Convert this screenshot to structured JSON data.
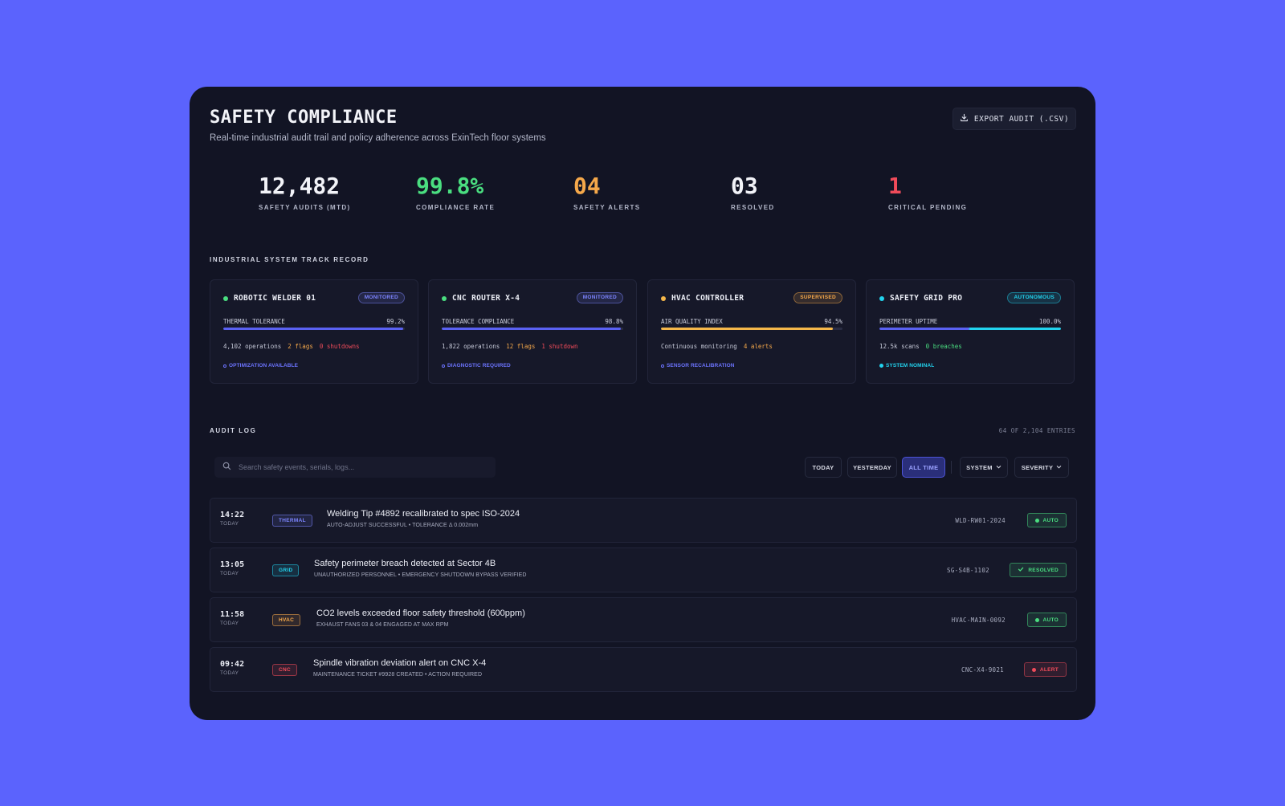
{
  "header": {
    "title": "SAFETY COMPLIANCE",
    "subtitle": "Real-time industrial audit trail and policy adherence across ExinTech floor systems",
    "export_label": "EXPORT AUDIT (.CSV)",
    "export_icon": "download-icon"
  },
  "stats": [
    {
      "value": "12,482",
      "label": "SAFETY AUDITS (MTD)",
      "color": "#f2f3f8"
    },
    {
      "value": "99.8%",
      "label": "COMPLIANCE RATE",
      "color": "#4ade80"
    },
    {
      "value": "04",
      "label": "SAFETY ALERTS",
      "color": "#f5a84a"
    },
    {
      "value": "03",
      "label": "RESOLVED",
      "color": "#f2f3f8"
    },
    {
      "value": "1",
      "label": "CRITICAL PENDING",
      "color": "#f04b5a"
    }
  ],
  "track_record": {
    "heading": "INDUSTRIAL SYSTEM TRACK RECORD",
    "systems": [
      {
        "name": "ROBOTIC WELDER 01",
        "dot_color": "#4ade80",
        "badge": "MONITORED",
        "badge_color": "#7c84ff",
        "metric_label": "THERMAL TOLERANCE",
        "metric_value": "99.2%",
        "level": 0.992,
        "bar_color": "#5a61f2",
        "ops": "4,102 operations",
        "flags": "2 flags",
        "flags_color": "#f5a84a",
        "extra": "0 shutdowns",
        "extra_color": "#f04b5a",
        "action": "OPTIMIZATION AVAILABLE",
        "action_color": "#6c74ff"
      },
      {
        "name": "CNC ROUTER X-4",
        "dot_color": "#4ade80",
        "badge": "MONITORED",
        "badge_color": "#7c84ff",
        "metric_label": "TOLERANCE COMPLIANCE",
        "metric_value": "98.8%",
        "level": 0.988,
        "bar_color": "#5a61f2",
        "ops": "1,822 operations",
        "flags": "12 flags",
        "flags_color": "#f5a84a",
        "extra": "1 shutdown",
        "extra_color": "#f04b5a",
        "action": "DIAGNOSTIC REQUIRED",
        "action_color": "#6c74ff"
      },
      {
        "name": "HVAC CONTROLLER",
        "dot_color": "#f5b74a",
        "badge": "SUPERVISED",
        "badge_color": "#f5a84a",
        "metric_label": "AIR QUALITY INDEX",
        "metric_value": "94.5%",
        "level": 0.945,
        "bar_color": "#f5b74a",
        "ops": "Continuous monitoring",
        "flags": "4 alerts",
        "flags_color": "#f5a84a",
        "extra": "",
        "extra_color": "#f04b5a",
        "action": "SENSOR RECALIBRATION",
        "action_color": "#6c74ff"
      },
      {
        "name": "SAFETY GRID PRO",
        "dot_color": "#22d3ee",
        "badge": "AUTONOMOUS",
        "badge_color": "#22d3ee",
        "metric_label": "PERIMETER UPTIME",
        "metric_value": "100.0%",
        "level": 1.0,
        "bar_color": "#22d3ee",
        "ops": "12.5k scans",
        "flags": "0 breaches",
        "flags_color": "#4ade80",
        "extra": "",
        "extra_color": "#f04b5a",
        "action": "SYSTEM NOMINAL",
        "action_color": "#22d3ee"
      }
    ]
  },
  "audit_log": {
    "heading": "AUDIT LOG",
    "entries_count": "64 OF 2,104 ENTRIES",
    "search_placeholder": "Search safety events, serials, logs...",
    "search_icon": "search-icon",
    "filters": {
      "today": "TODAY",
      "yesterday": "YESTERDAY",
      "all_time": "ALL TIME",
      "active": "ALL TIME"
    },
    "dropdowns": {
      "system": "SYSTEM",
      "severity": "SEVERITY"
    },
    "rows": [
      {
        "time": "14:22",
        "day": "TODAY",
        "tag": "THERMAL",
        "tag_color": "#7c84ff",
        "title": "Welding Tip #4892 recalibrated to spec ISO-2024",
        "detail": "AUTO-ADJUST SUCCESSFUL • TOLERANCE Δ 0.002mm",
        "serial": "WLD-RW01-2024",
        "status": "AUTO",
        "status_color": "#4ade80",
        "status_icon": "dot-icon"
      },
      {
        "time": "13:05",
        "day": "TODAY",
        "tag": "GRID",
        "tag_color": "#22d3ee",
        "title": "Safety perimeter breach detected at Sector 4B",
        "detail": "UNAUTHORIZED PERSONNEL • EMERGENCY SHUTDOWN BYPASS VERIFIED",
        "serial": "SG-S4B-1102",
        "status": "RESOLVED",
        "status_color": "#4ade80",
        "status_icon": "check-icon"
      },
      {
        "time": "11:58",
        "day": "TODAY",
        "tag": "HVAC",
        "tag_color": "#f5a84a",
        "title": "CO2 levels exceeded floor safety threshold (600ppm)",
        "detail": "EXHAUST FANS 03 & 04 ENGAGED AT MAX RPM",
        "serial": "HVAC-MAIN-0092",
        "status": "AUTO",
        "status_color": "#4ade80",
        "status_icon": "dot-icon"
      },
      {
        "time": "09:42",
        "day": "TODAY",
        "tag": "CNC",
        "tag_color": "#f04b5a",
        "title": "Spindle vibration deviation alert on CNC X-4",
        "detail": "MAINTENANCE TICKET #9928 CREATED • ACTION REQUIRED",
        "serial": "CNC-X4-9021",
        "status": "ALERT",
        "status_color": "#f04b5a",
        "status_icon": "dot-icon"
      }
    ]
  }
}
